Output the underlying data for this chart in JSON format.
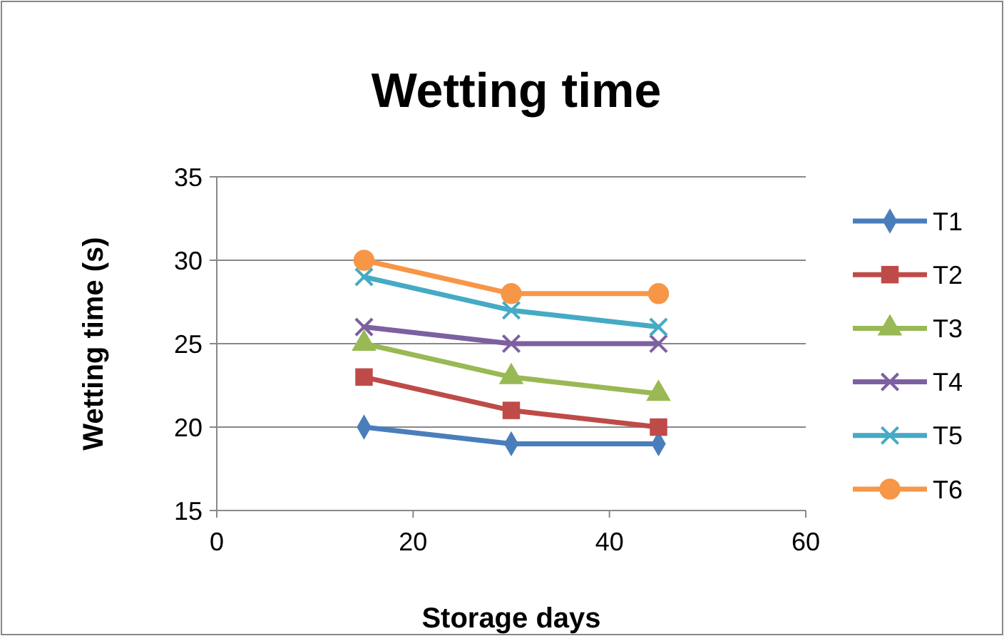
{
  "chart_data": {
    "type": "line",
    "title": "Wetting time",
    "xlabel": "Storage days",
    "ylabel": "Wetting time (s)",
    "x": [
      15,
      30,
      45
    ],
    "xlim": [
      0,
      60
    ],
    "xticks": [
      0,
      20,
      40,
      60
    ],
    "ylim": [
      15,
      35
    ],
    "yticks": [
      15,
      20,
      25,
      30,
      35
    ],
    "grid": "y",
    "legend": "right",
    "line_style": "solid",
    "series": [
      {
        "name": "T1",
        "color": "#4a7ebb",
        "marker": "diamond",
        "values": [
          20,
          19,
          19
        ]
      },
      {
        "name": "T2",
        "color": "#be4b48",
        "marker": "square",
        "values": [
          23,
          21,
          20
        ]
      },
      {
        "name": "T3",
        "color": "#98b954",
        "marker": "triangle",
        "values": [
          25,
          23,
          22
        ]
      },
      {
        "name": "T4",
        "color": "#7d60a0",
        "marker": "cross",
        "values": [
          26,
          25,
          25
        ]
      },
      {
        "name": "T5",
        "color": "#46aac5",
        "marker": "cross",
        "values": [
          29,
          27,
          26
        ]
      },
      {
        "name": "T6",
        "color": "#f79646",
        "marker": "circle",
        "values": [
          30,
          28,
          28
        ]
      }
    ]
  }
}
